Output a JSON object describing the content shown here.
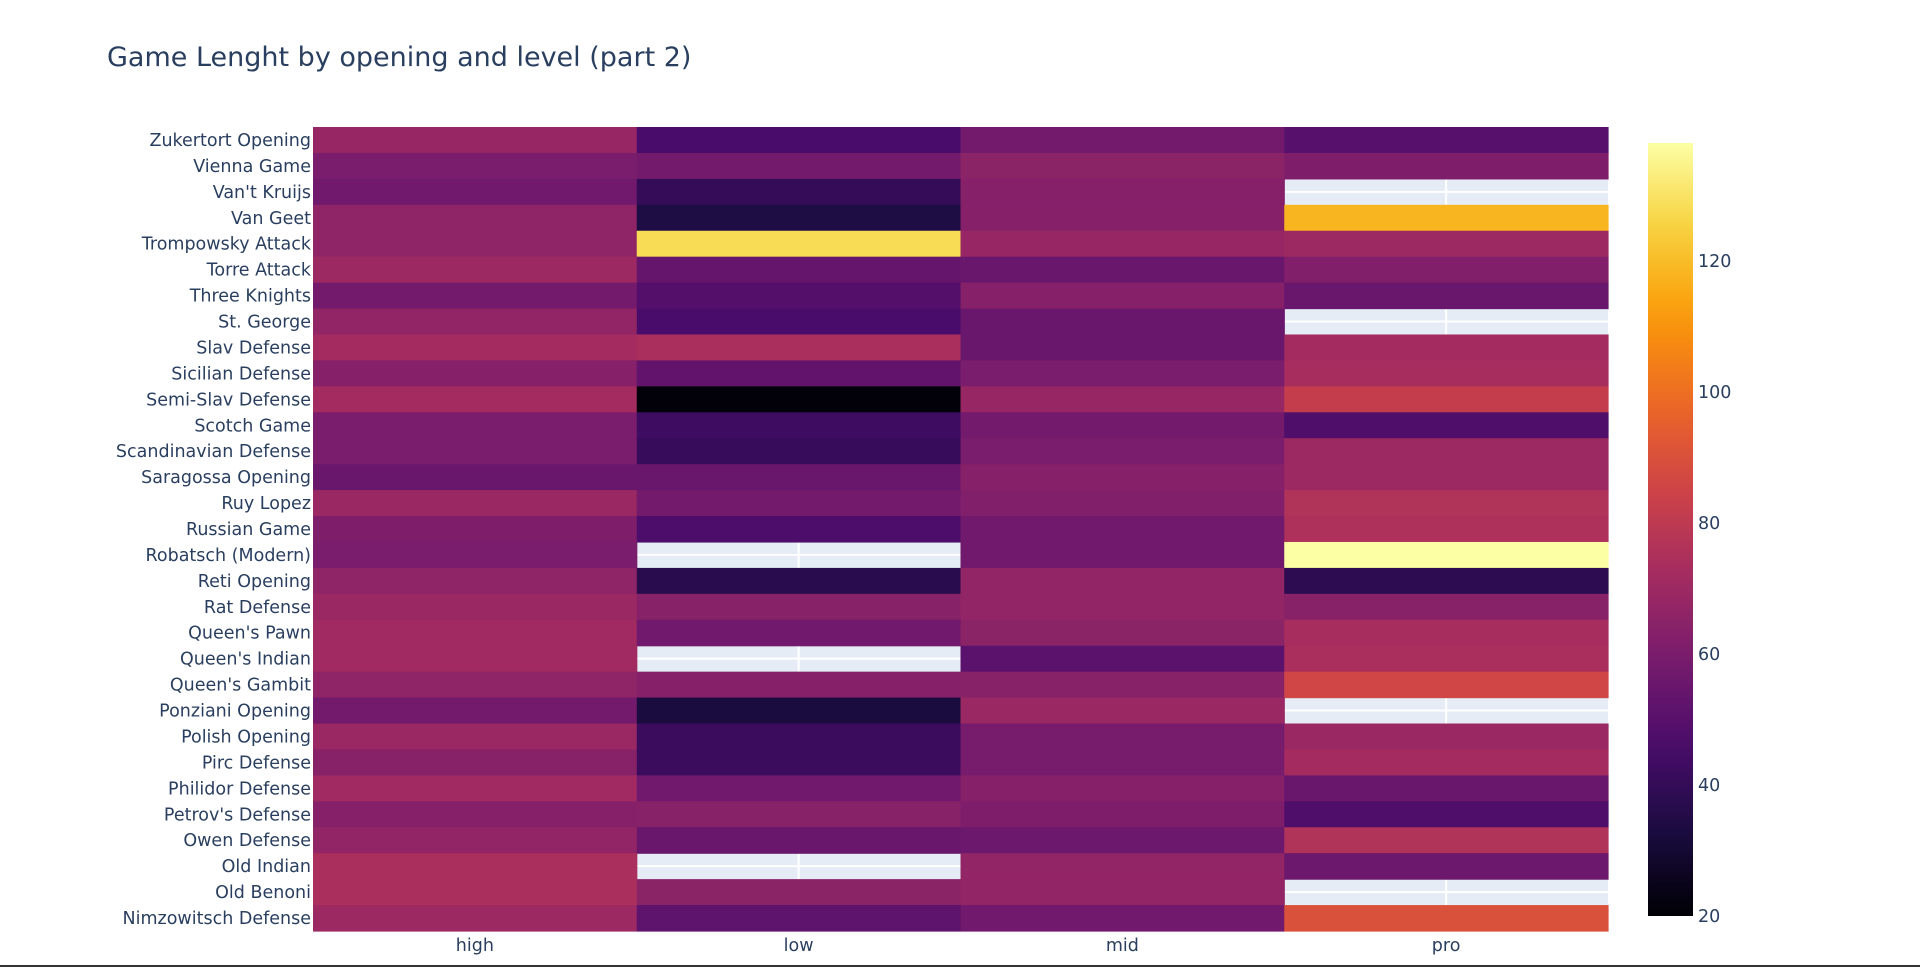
{
  "chart_data": {
    "type": "heatmap",
    "title": "Game Lenght by opening and level (part 2)",
    "x": [
      "high",
      "low",
      "mid",
      "pro"
    ],
    "y": [
      "Zukertort Opening",
      "Vienna Game",
      "Van't Kruijs",
      "Van Geet",
      "Trompowsky Attack",
      "Torre Attack",
      "Three Knights",
      "St. George",
      "Slav Defense",
      "Sicilian Defense",
      "Semi-Slav Defense",
      "Scotch Game",
      "Scandinavian Defense",
      "Saragossa Opening",
      "Ruy Lopez",
      "Russian Game",
      "Robatsch (Modern)",
      "Reti Opening",
      "Rat Defense",
      "Queen's Pawn",
      "Queen's Indian",
      "Queen's Gambit",
      "Ponziani Opening",
      "Polish Opening",
      "Pirc Defense",
      "Philidor Defense",
      "Petrov's Defense",
      "Owen Defense",
      "Old Indian",
      "Old Benoni",
      "Nimzowitsch Defense"
    ],
    "z": [
      [
        68,
        46,
        58,
        50
      ],
      [
        60,
        58,
        65,
        61
      ],
      [
        57,
        40,
        63,
        null
      ],
      [
        66,
        34,
        63,
        118
      ],
      [
        66,
        128,
        68,
        70
      ],
      [
        70,
        54,
        55,
        62
      ],
      [
        58,
        49,
        63,
        55
      ],
      [
        67,
        46,
        55,
        null
      ],
      [
        72,
        74,
        55,
        72
      ],
      [
        63,
        53,
        60,
        73
      ],
      [
        72,
        21,
        68,
        82
      ],
      [
        60,
        43,
        58,
        48
      ],
      [
        60,
        41,
        60,
        70
      ],
      [
        55,
        55,
        63,
        70
      ],
      [
        69,
        58,
        62,
        76
      ],
      [
        61,
        47,
        57,
        75
      ],
      [
        60,
        null,
        57,
        138
      ],
      [
        66,
        37,
        67,
        38
      ],
      [
        69,
        64,
        67,
        64
      ],
      [
        71,
        57,
        65,
        73
      ],
      [
        71,
        null,
        51,
        74
      ],
      [
        66,
        63,
        64,
        86
      ],
      [
        58,
        33,
        69,
        null
      ],
      [
        69,
        42,
        59,
        69
      ],
      [
        64,
        42,
        59,
        72
      ],
      [
        71,
        57,
        63,
        55
      ],
      [
        63,
        64,
        61,
        48
      ],
      [
        67,
        55,
        56,
        76
      ],
      [
        74,
        null,
        67,
        56
      ],
      [
        74,
        65,
        67,
        null
      ],
      [
        70,
        52,
        57,
        90
      ]
    ],
    "zmin": 20,
    "zmax": 138,
    "colorscale": "Inferno",
    "colorbar_ticks": [
      20,
      40,
      60,
      80,
      100,
      120
    ],
    "colorbar_tick_labels": [
      "20",
      "40",
      "60",
      "80",
      "100",
      "120"
    ],
    "missing_color": "#e5ecf6",
    "grid": true,
    "xlabel": "",
    "ylabel": ""
  }
}
